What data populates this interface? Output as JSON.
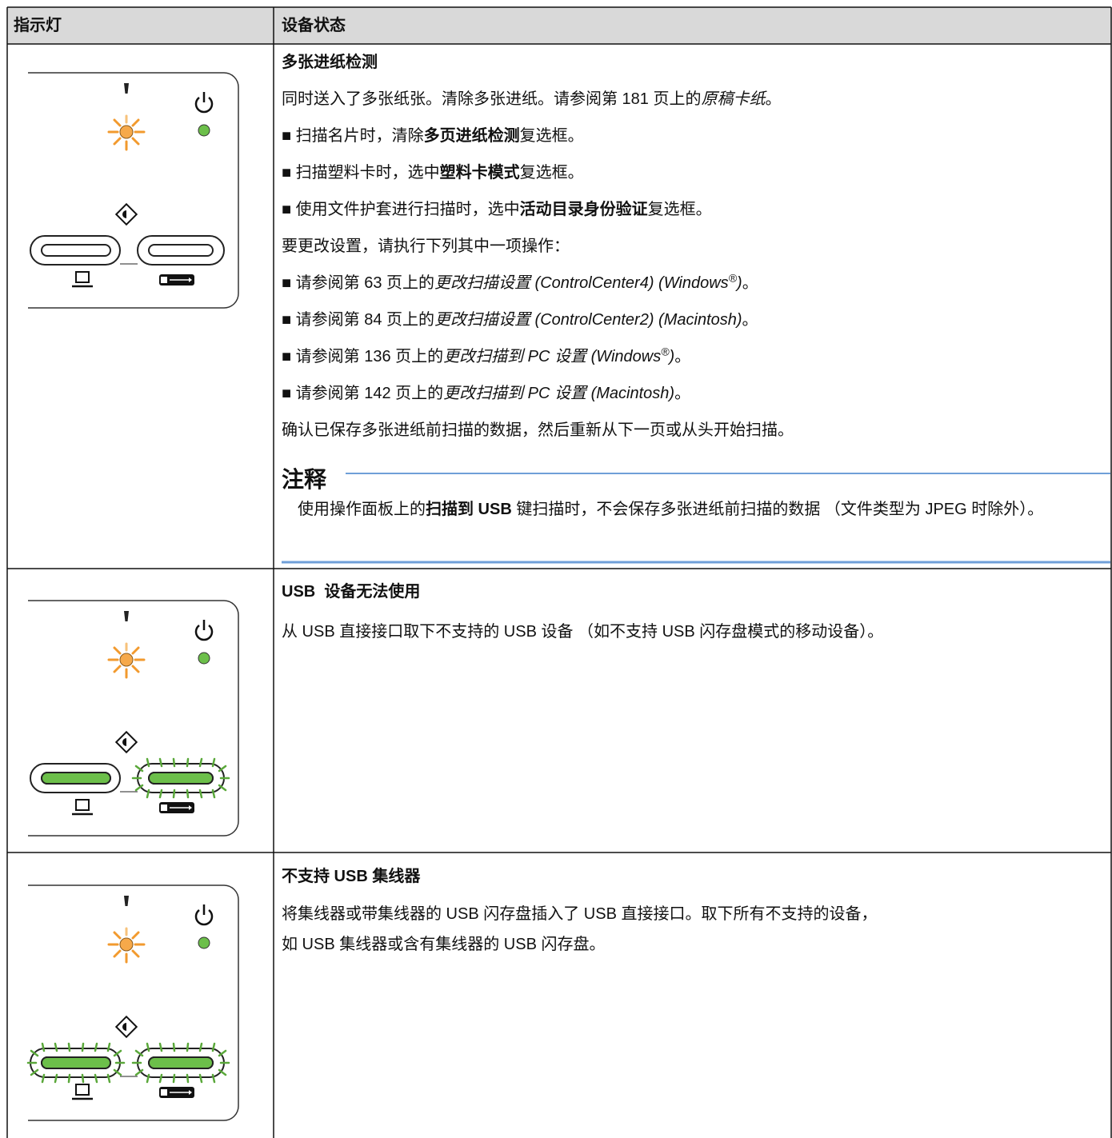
{
  "table": {
    "headers": [
      "指示灯",
      "设备状态"
    ],
    "rows": [
      {
        "title": "多张进纸检测",
        "paragraphs": [
          [
            "同时送入了多张纸张。清除多张进纸。请参阅第 181 页上的",
            "原稿卡纸",
            "。"
          ],
          [
            "■ 扫描名片时，清除",
            "多页进纸检测",
            "复选框。"
          ],
          [
            "■ 扫描塑料卡时，选中",
            "塑料卡模式",
            "复选框。"
          ],
          [
            "■ 使用文件护套进行扫描时，选中",
            "活动目录身份验证",
            "复选框。"
          ],
          [
            "要更改设置，请执行下列其中一项操作："
          ],
          [
            "■ 请参阅第 63 页上的",
            "更改扫描设置 (ControlCenter4) (Windows",
            "®",
            ")",
            "。"
          ],
          [
            "■ 请参阅第 84 页上的",
            "更改扫描设置 (ControlCenter2) (Macintosh)",
            "。"
          ],
          [
            "■ 请参阅第 136 页上的",
            "更改扫描到 PC 设置 (Windows",
            "®",
            ")",
            "。"
          ],
          [
            "■ 请参阅第 142 页上的",
            "更改扫描到 PC 设置 (Macintosh)",
            "。"
          ],
          [
            "确认已保存多张进纸前扫描的数据，然后重新从下一页或从头开始扫描。"
          ]
        ],
        "note": {
          "label": "注释",
          "text": [
            "使用操作面板上的",
            "扫描到 USB",
            " 键扫描时，不会保存多张进纸前扫描的数据 （文件类型为 JPEG 时除外）。"
          ]
        }
      },
      {
        "title": "USB  设备无法使用",
        "paragraphs": [
          [
            "从 USB 直接接口取下不支持的 USB 设备 （如不支持 USB 闪存盘模式的移动设备）。"
          ]
        ]
      },
      {
        "title": "不支持 USB 集线器",
        "paragraphs": [
          [
            "将集线器或带集线器的 USB 闪存盘插入了 USB 直接接口。取下所有不支持的设备，"
          ],
          [
            "如 USB 集线器或含有集线器的 USB 闪存盘。"
          ]
        ]
      }
    ]
  }
}
